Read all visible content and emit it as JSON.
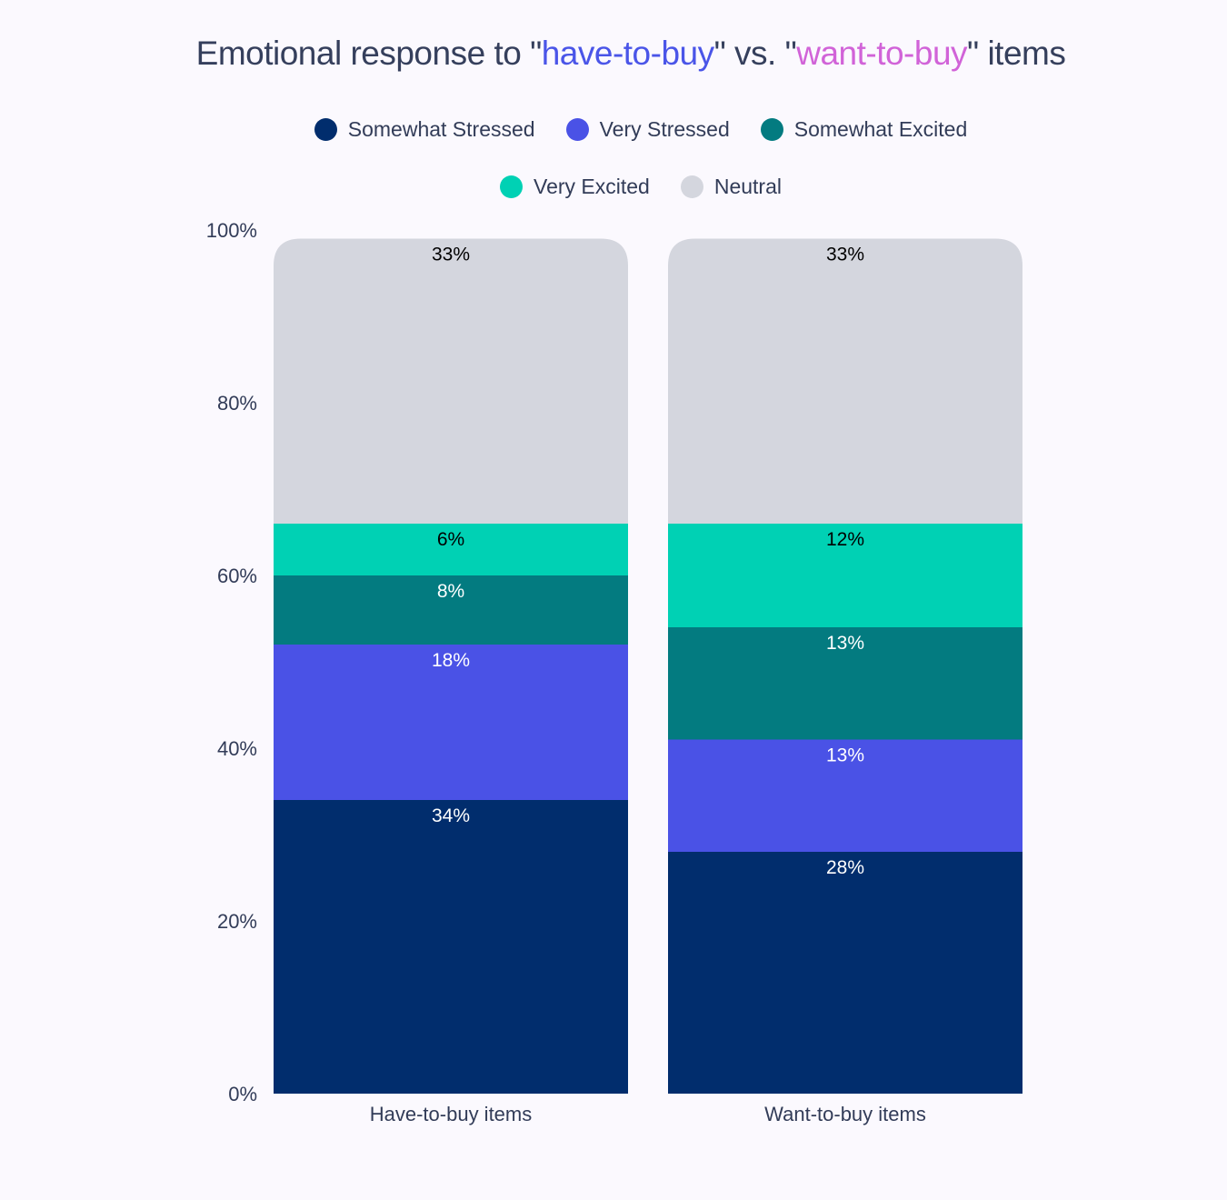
{
  "title": {
    "parts": [
      {
        "text": "Emotional response to \"",
        "color": "#353f5c"
      },
      {
        "text": "have-to-buy",
        "color": "#4a55e8"
      },
      {
        "text": "\" vs. \"",
        "color": "#353f5c"
      },
      {
        "text": "want-to-buy",
        "color": "#d163d8"
      },
      {
        "text": "\" items",
        "color": "#353f5c"
      }
    ]
  },
  "chart_data": {
    "type": "bar",
    "stacked": true,
    "title": "Emotional response to \"have-to-buy\" vs. \"want-to-buy\" items",
    "categories": [
      "Have-to-buy items",
      "Want-to-buy items"
    ],
    "series": [
      {
        "name": "Somewhat Stressed",
        "color": "#012d6d",
        "label_color": "#ffffff",
        "values": [
          34,
          28
        ]
      },
      {
        "name": "Very Stressed",
        "color": "#4a52e6",
        "label_color": "#ffffff",
        "values": [
          18,
          13
        ]
      },
      {
        "name": "Somewhat Excited",
        "color": "#037b80",
        "label_color": "#ffffff",
        "values": [
          8,
          13
        ]
      },
      {
        "name": "Very Excited",
        "color": "#00d1b4",
        "label_color": "#000000",
        "values": [
          6,
          12
        ]
      },
      {
        "name": "Neutral",
        "color": "#d4d6de",
        "label_color": "#000000",
        "values": [
          33,
          33
        ]
      }
    ],
    "y_ticks": [
      "0%",
      "20%",
      "40%",
      "60%",
      "80%",
      "100%"
    ],
    "ylim": [
      0,
      100
    ],
    "grid": false,
    "legend_position": "top"
  }
}
